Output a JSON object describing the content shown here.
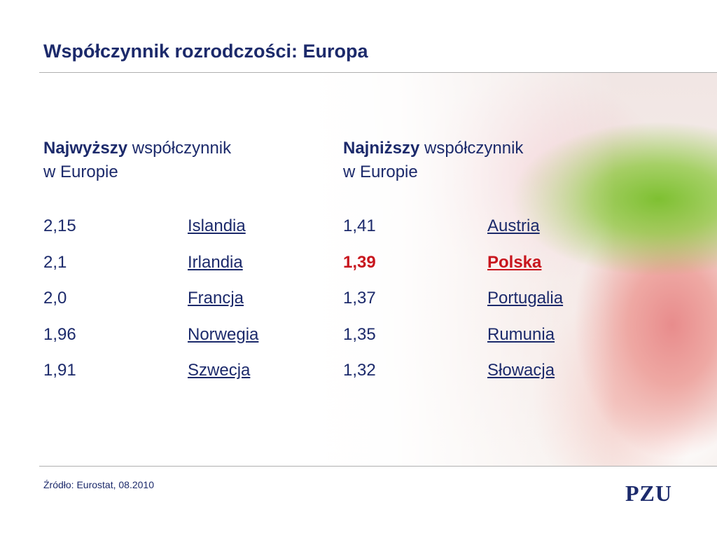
{
  "slide": {
    "title": "Współczynnik rozrodczości: Europa",
    "source": "Źródło: Eurostat, 08.2010",
    "logo": "PZU"
  },
  "highest": {
    "heading_bold": "Najwyższy",
    "heading_rest": " współczynnik",
    "heading_line2": "w Europie",
    "rows": [
      {
        "value": "2,15",
        "country": "Islandia"
      },
      {
        "value": "2,1",
        "country": "Irlandia"
      },
      {
        "value": "2,0",
        "country": "Francja"
      },
      {
        "value": "1,96",
        "country": "Norwegia"
      },
      {
        "value": "1,91",
        "country": "Szwecja"
      }
    ]
  },
  "lowest": {
    "heading_bold": "Najniższy",
    "heading_rest": " współczynnik",
    "heading_line2": "w Europie",
    "rows": [
      {
        "value": "1,41",
        "country": "Austria",
        "highlight": false
      },
      {
        "value": "1,39",
        "country": "Polska",
        "highlight": true
      },
      {
        "value": "1,37",
        "country": "Portugalia",
        "highlight": false
      },
      {
        "value": "1,35",
        "country": "Rumunia",
        "highlight": false
      },
      {
        "value": "1,32",
        "country": "Słowacja",
        "highlight": false
      }
    ]
  },
  "colors": {
    "text": "#1c2a6b",
    "highlight": "#c8161e",
    "rule": "#b0b0b0"
  }
}
